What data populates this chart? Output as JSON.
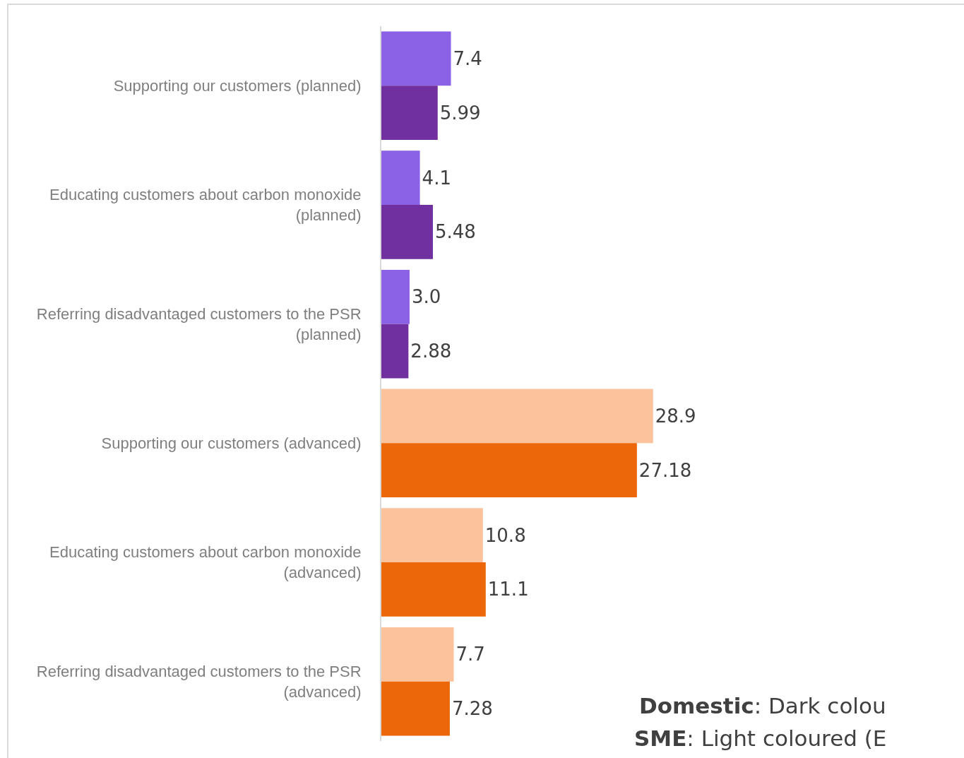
{
  "chart_data": {
    "type": "bar",
    "orientation": "horizontal",
    "categories": [
      "Supporting our customers (planned)",
      "Educating customers about carbon monoxide (planned)",
      "Referring disadvantaged customers to the PSR (planned)",
      "Supporting our customers (advanced)",
      "Educating customers about carbon monoxide (advanced)",
      "Referring disadvantaged customers to the PSR (advanced)"
    ],
    "series": [
      {
        "colors": [
          "#8b62e6",
          "#8b62e6",
          "#8b62e6",
          "#fbc29b",
          "#fbc29b",
          "#fbc29b"
        ],
        "values": [
          7.4,
          4.1,
          3.0,
          28.9,
          10.8,
          7.7
        ],
        "value_labels": [
          "7.4",
          "4.1",
          "3.0",
          "28.9",
          "10.8",
          "7.7"
        ]
      },
      {
        "colors": [
          "#7030a0",
          "#7030a0",
          "#7030a0",
          "#eb6709",
          "#eb6709",
          "#eb6709"
        ],
        "values": [
          5.99,
          5.48,
          2.88,
          27.18,
          11.1,
          7.28
        ],
        "value_labels": [
          "5.99",
          "5.48",
          "2.88",
          "27.18",
          "11.1",
          "7.28"
        ]
      }
    ],
    "annotations": [
      "Domestic: Dark colou",
      "SME: Light coloured (E"
    ]
  }
}
